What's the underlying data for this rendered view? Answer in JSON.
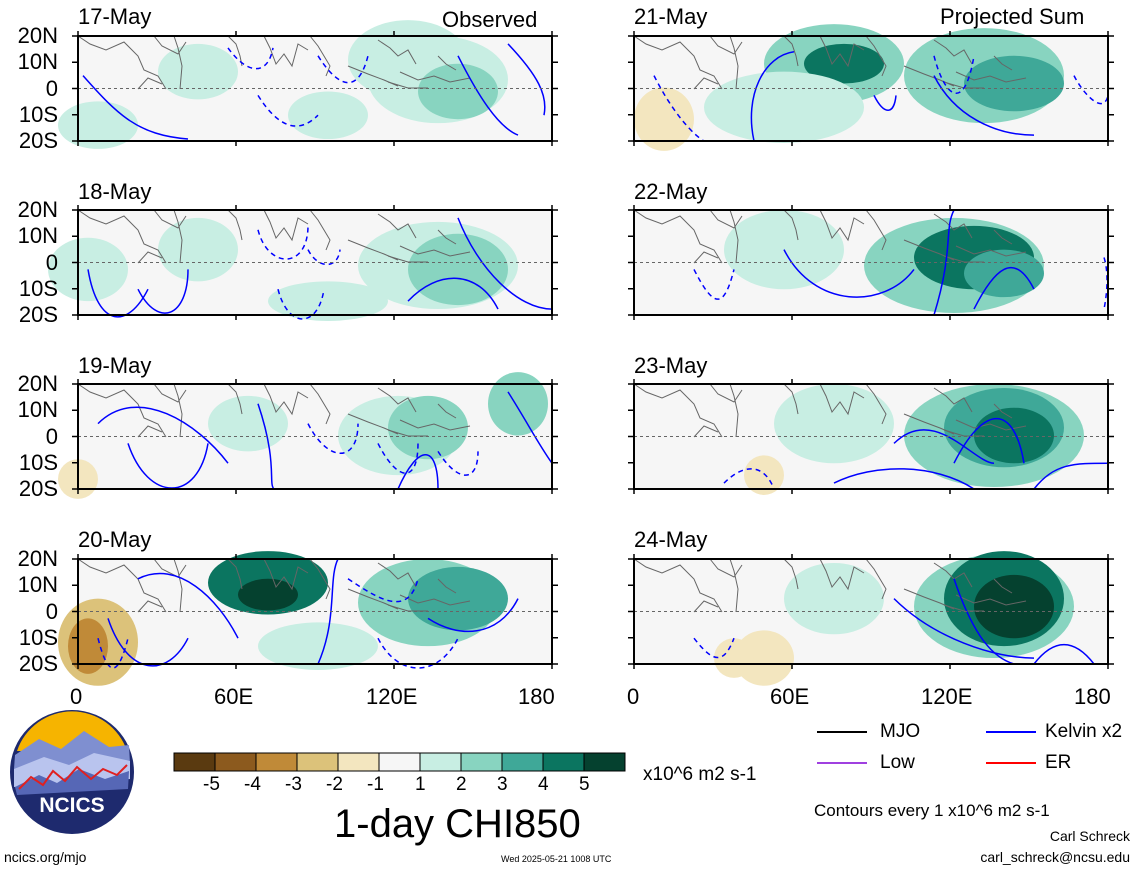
{
  "panel_labels": {
    "left_header": "Observed",
    "right_header": "Projected Sum"
  },
  "panels_left": [
    {
      "date": "17-May"
    },
    {
      "date": "18-May"
    },
    {
      "date": "19-May"
    },
    {
      "date": "20-May"
    }
  ],
  "panels_right": [
    {
      "date": "21-May"
    },
    {
      "date": "22-May"
    },
    {
      "date": "23-May"
    },
    {
      "date": "24-May"
    }
  ],
  "lat_labels": [
    "20N",
    "10N",
    "0",
    "10S",
    "20S"
  ],
  "lon_labels": [
    "0",
    "60E",
    "120E",
    "180"
  ],
  "colorbar": {
    "ticks": [
      "-5",
      "-4",
      "-3",
      "-2",
      "-1",
      "1",
      "2",
      "3",
      "4",
      "5"
    ],
    "colors": [
      "#5a3a10",
      "#8c5a1e",
      "#c08a38",
      "#dcc27a",
      "#f3e6bf",
      "#f6f6f6",
      "#c8eee3",
      "#88d4c0",
      "#3fa898",
      "#0b7560",
      "#05412f"
    ],
    "units": "x10^6 m2 s-1",
    "title": "1-day CHI850"
  },
  "legend": {
    "items": [
      {
        "label": "MJO",
        "color": "#000000"
      },
      {
        "label": "Kelvin x2",
        "color": "#0000ff"
      },
      {
        "label": "Low",
        "color": "#a040e0"
      },
      {
        "label": "ER",
        "color": "#ff0000"
      }
    ],
    "contour_note": "Contours every 1 x10^6 m2 s-1"
  },
  "credits": {
    "logo_text": "NCICS",
    "site": "ncics.org/mjo",
    "timestamp": "Wed 2025-05-21 1008 UTC",
    "author": "Carl Schreck",
    "email": "carl_schreck@ncsu.edu"
  }
}
